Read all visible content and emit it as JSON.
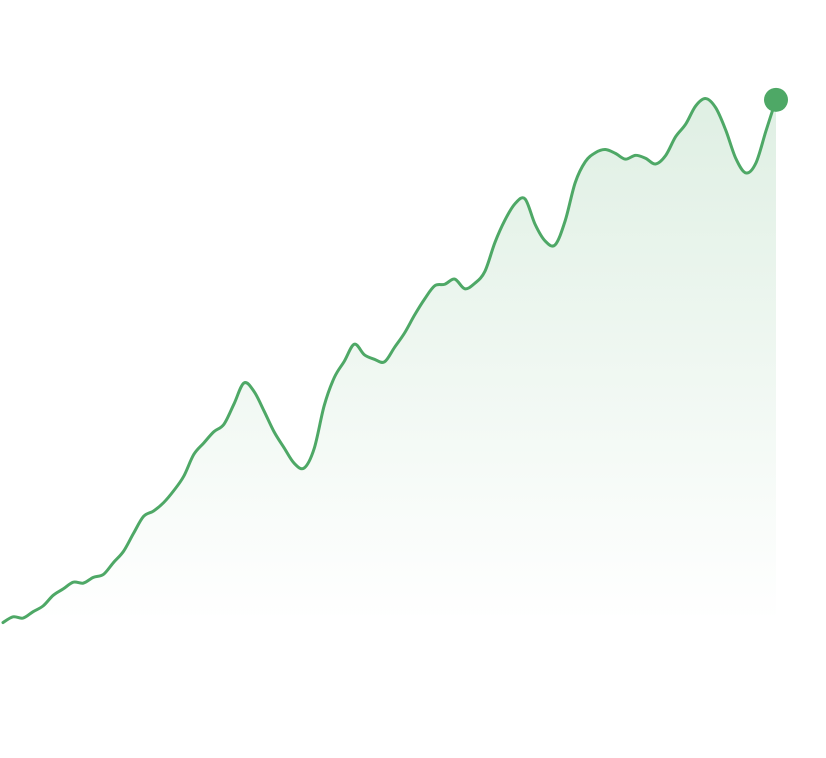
{
  "chart_data": {
    "type": "area",
    "title": "",
    "xlabel": "",
    "ylabel": "",
    "grid": false,
    "legend": "none",
    "colors": {
      "line": "#4ea866",
      "fill": "#4ea866",
      "endpoint": "#4ea866"
    },
    "x": [
      0,
      1,
      2,
      3,
      4,
      5,
      6,
      7,
      8,
      9,
      10,
      11,
      12,
      13,
      14,
      15,
      16,
      17,
      18,
      19,
      20,
      21,
      22,
      23,
      24,
      25,
      26,
      27,
      28,
      29,
      30,
      31,
      32,
      33,
      34,
      35,
      36,
      37,
      38,
      39,
      40,
      41,
      42,
      43,
      44,
      45,
      46,
      47,
      48,
      49,
      50,
      51,
      52,
      53,
      54,
      55,
      56,
      57,
      58,
      59,
      60,
      61,
      62,
      63,
      64,
      65,
      66,
      67,
      68,
      69,
      70,
      71,
      72,
      73,
      74,
      75,
      76,
      77
    ],
    "series": [
      {
        "values": [
          0.5,
          2.3,
          1.9,
          3.9,
          5.7,
          9.0,
          11.0,
          13.1,
          12.8,
          14.6,
          15.5,
          19.2,
          22.7,
          28.3,
          33.6,
          35.3,
          37.9,
          41.6,
          46.1,
          52.9,
          56.5,
          60.0,
          62.3,
          68.6,
          75.2,
          72.6,
          66.5,
          60.0,
          55.0,
          50.2,
          48.7,
          54.8,
          68.2,
          76.9,
          82.0,
          87.3,
          84.0,
          82.6,
          81.8,
          86.3,
          90.8,
          96.4,
          101.4,
          105.5,
          106.0,
          107.6,
          104.6,
          106.3,
          110.0,
          119.0,
          126.0,
          131.1,
          132.6,
          124.7,
          119.5,
          118.3,
          125.8,
          137.7,
          144.2,
          147.0,
          148.0,
          146.8,
          145.0,
          146.2,
          145.3,
          143.5,
          146.1,
          152.0,
          155.9,
          161.6,
          163.9,
          161.0,
          154.0,
          145.2,
          140.7,
          143.8,
          153.8,
          163.5
        ]
      }
    ],
    "ylim": [
      -4,
      170
    ],
    "end_marker": true
  }
}
